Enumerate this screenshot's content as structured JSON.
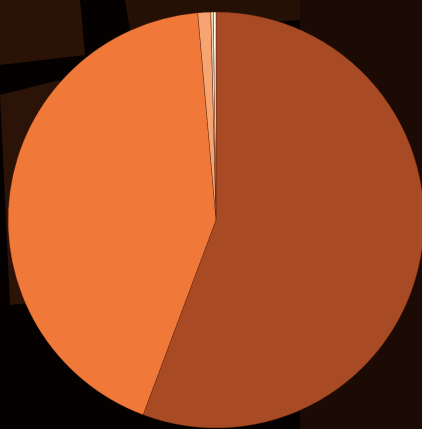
{
  "chart_data": {
    "type": "pie",
    "values": [
      55.7,
      42.9,
      1.0,
      0.2,
      0.2
    ],
    "colors": [
      "#a84a23",
      "#f07838",
      "#f5a472",
      "#f6d2a6",
      "#ffffff"
    ]
  }
}
